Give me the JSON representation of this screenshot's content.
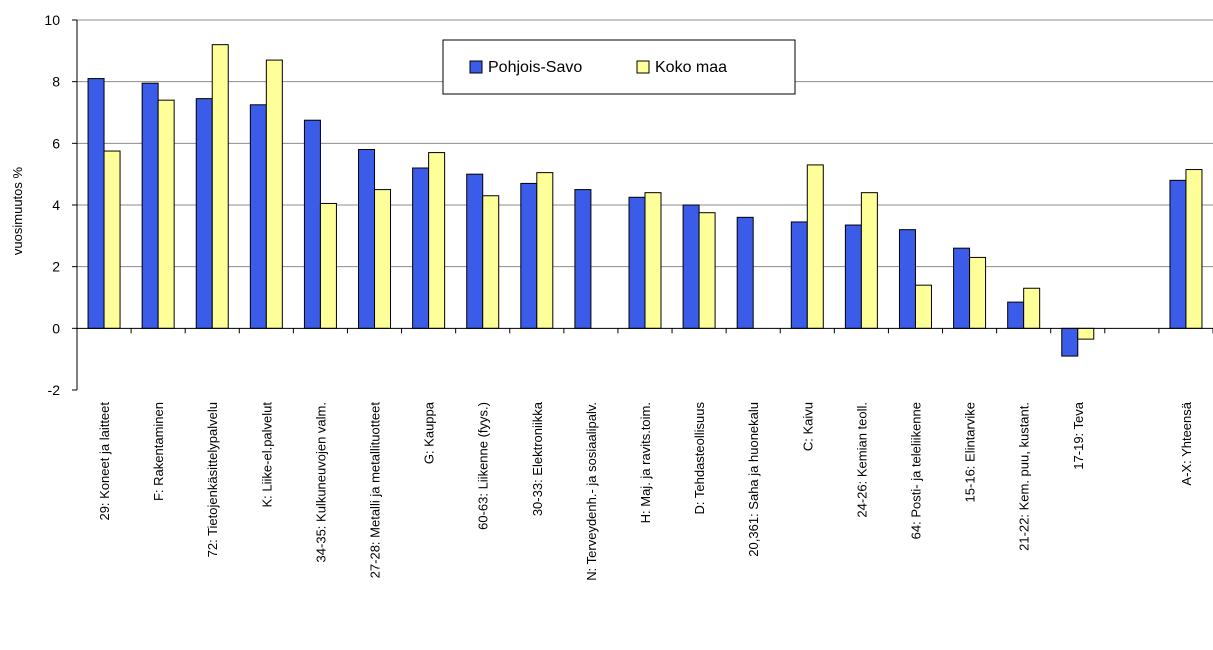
{
  "chart_data": {
    "type": "bar",
    "ylabel": "vuosimuutos %",
    "ylim": [
      -2,
      10
    ],
    "yticks": [
      -2,
      0,
      2,
      4,
      6,
      8,
      10
    ],
    "grid": true,
    "legend_position": "top-center",
    "categories": [
      "29: Koneet ja laitteet",
      "F: Rakentaminen",
      "72: Tietojenkäsittelypalvelu",
      "K: Liike-el.palvelut",
      "34-35: Kulkuneuvojen valm.",
      "27-28: Metalli ja metallituotteet",
      "G: Kauppa",
      "60-63: Liikenne (fyys.)",
      "30-33: Elektroniikka",
      "N: Terveydenh.- ja sosiaalipalv.",
      "H: Maj. ja ravits.toim.",
      "D: Tehdasteollisuus",
      "20,361: Saha ja huonekalu",
      "C: Kaivu",
      "24-26: Kemian teoll.",
      "64: Posti- ja teleliikenne",
      "15-16: Elintarvike",
      "21-22: Kem. puu, kustant.",
      "17-19: Teva",
      "",
      "A-X: Yhteensä"
    ],
    "series": [
      {
        "name": "Pohjois-Savo",
        "color": "#3A5CE8",
        "values": [
          8.1,
          7.95,
          7.45,
          7.25,
          6.75,
          5.8,
          5.2,
          5.0,
          4.7,
          4.5,
          4.25,
          4.0,
          3.6,
          3.45,
          3.35,
          3.2,
          2.6,
          0.85,
          -0.9,
          null,
          4.8
        ]
      },
      {
        "name": "Koko maa",
        "color": "#FFFF99",
        "values": [
          5.75,
          7.4,
          9.2,
          8.7,
          4.05,
          4.5,
          5.7,
          4.3,
          5.05,
          null,
          4.4,
          3.75,
          null,
          5.3,
          4.4,
          1.4,
          2.3,
          1.3,
          -0.35,
          null,
          5.15
        ]
      }
    ]
  }
}
